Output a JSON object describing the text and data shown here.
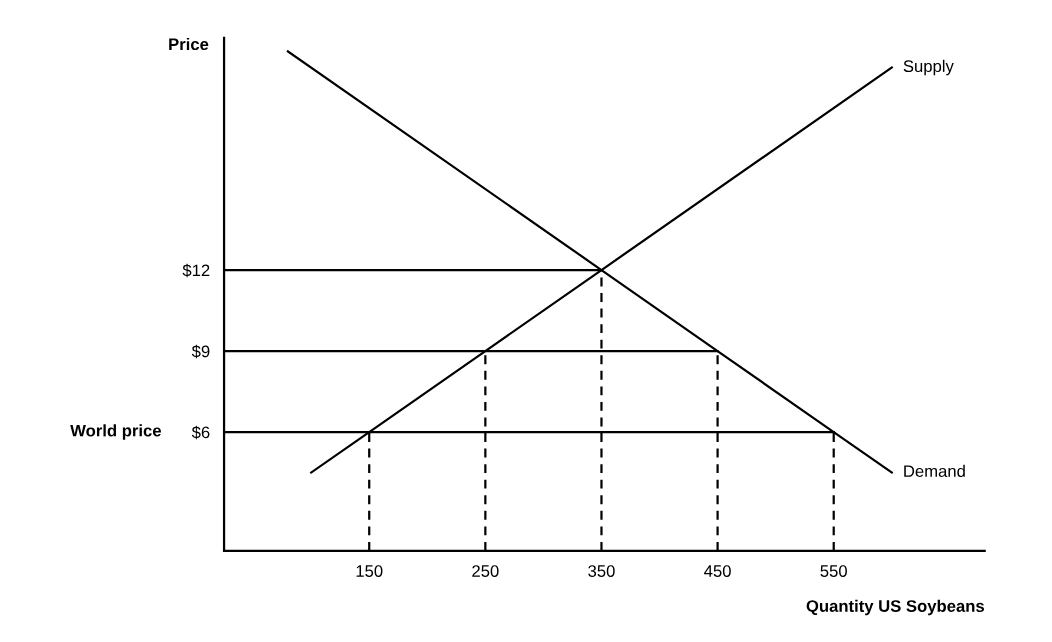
{
  "chart_data": {
    "type": "line",
    "xlabel": "Quantity US Soybeans",
    "ylabel": "Price",
    "xlim": [
      25,
      680
    ],
    "ylim": [
      1.6,
      20.6
    ],
    "xticks": [
      150,
      250,
      350,
      450,
      550
    ],
    "yticks": [
      {
        "value": 6,
        "label": "$6"
      },
      {
        "value": 9,
        "label": "$9"
      },
      {
        "value": 12,
        "label": "$12"
      }
    ],
    "annotations": [
      "World price"
    ],
    "grid": false,
    "legend": false,
    "marker": "none",
    "series": [
      {
        "name": "Supply",
        "color": "#000000",
        "x": [
          100,
          150,
          250,
          350,
          600
        ],
        "values": [
          4.5,
          6,
          9,
          12,
          19.5
        ]
      },
      {
        "name": "Demand",
        "color": "#000000",
        "x": [
          80,
          350,
          450,
          550,
          600
        ],
        "values": [
          20.1,
          12,
          9,
          6,
          4.5
        ]
      },
      {
        "color": "#000000",
        "x": [
          25,
          350
        ],
        "values": [
          12,
          12
        ]
      },
      {
        "color": "#000000",
        "x": [
          25,
          450
        ],
        "values": [
          9,
          9
        ]
      },
      {
        "color": "#000000",
        "x": [
          25,
          550
        ],
        "values": [
          6,
          6
        ]
      },
      {
        "color": "#000000",
        "line_style": "dashed",
        "x": [
          150,
          150
        ],
        "values": [
          1.6,
          6
        ]
      },
      {
        "color": "#000000",
        "line_style": "dashed",
        "x": [
          250,
          250
        ],
        "values": [
          1.6,
          9
        ]
      },
      {
        "color": "#000000",
        "line_style": "dashed",
        "x": [
          350,
          350
        ],
        "values": [
          1.6,
          12
        ]
      },
      {
        "color": "#000000",
        "line_style": "dashed",
        "x": [
          450,
          450
        ],
        "values": [
          1.6,
          9
        ]
      },
      {
        "color": "#000000",
        "line_style": "dashed",
        "x": [
          550,
          550
        ],
        "values": [
          1.6,
          6
        ]
      }
    ]
  }
}
